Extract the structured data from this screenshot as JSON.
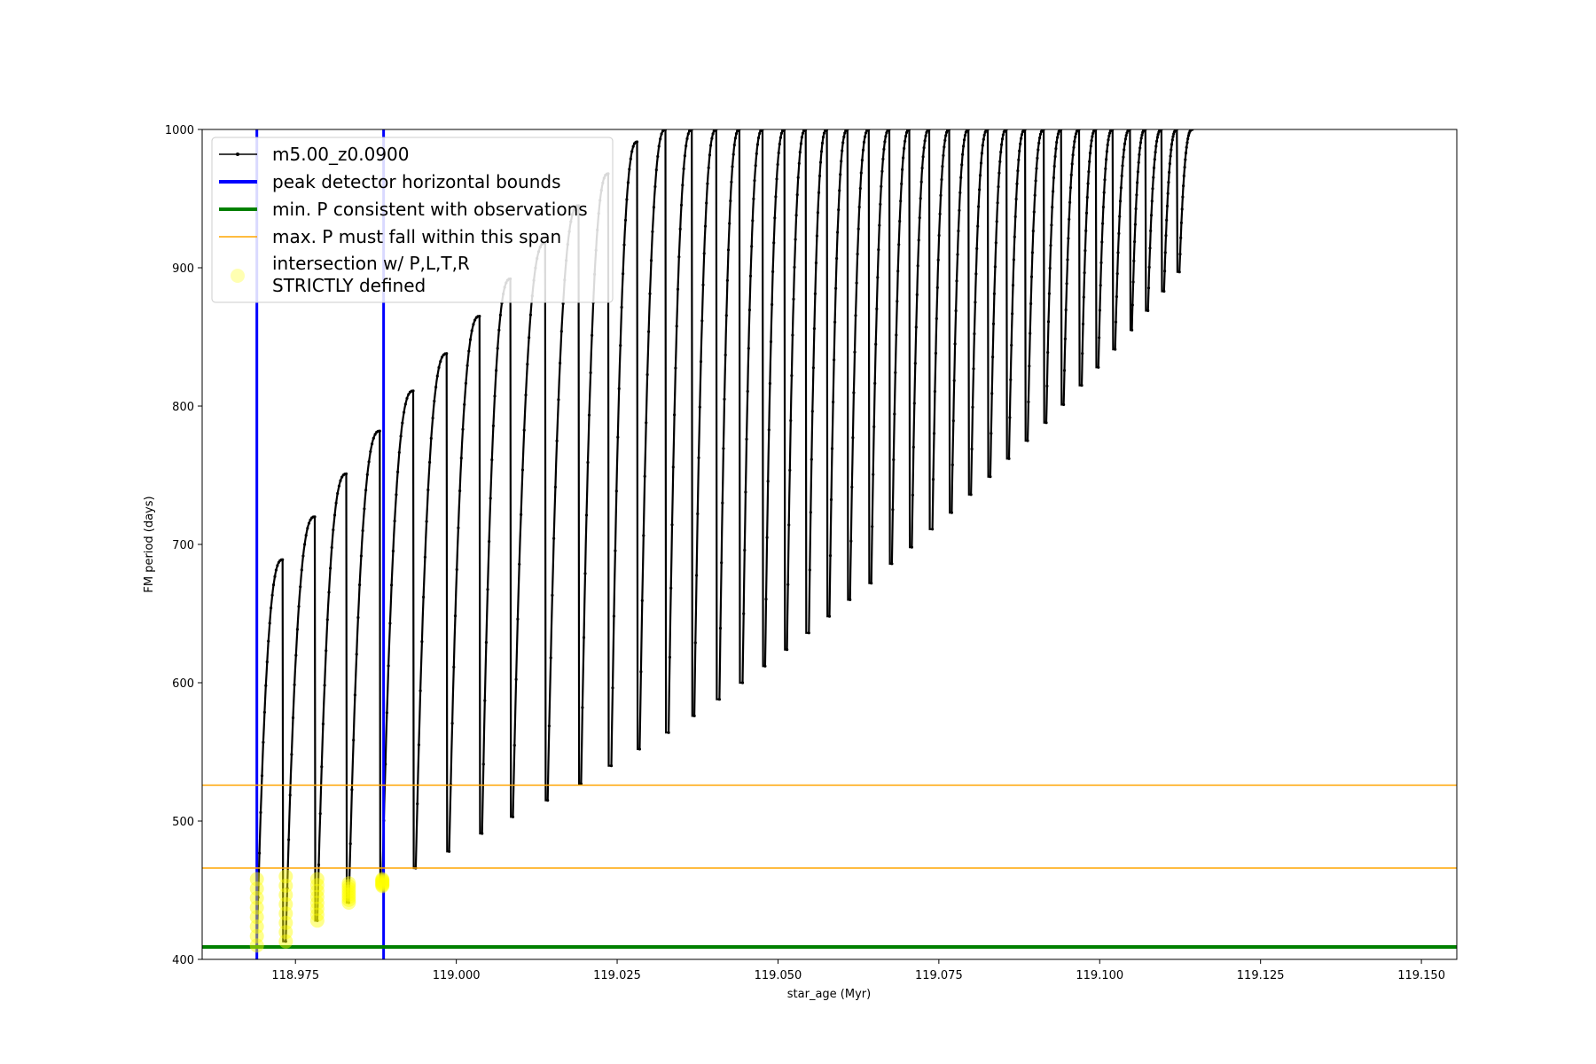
{
  "chart_data": {
    "type": "line",
    "xlabel": "star_age (Myr)",
    "ylabel": "FM period (days)",
    "xlim": [
      118.9605,
      119.1555
    ],
    "ylim": [
      400,
      1000
    ],
    "xticks": [
      118.975,
      119.0,
      119.025,
      119.05,
      119.075,
      119.1,
      119.125,
      119.15
    ],
    "xtick_labels": [
      "118.975",
      "119.000",
      "119.025",
      "119.050",
      "119.075",
      "119.100",
      "119.125",
      "119.150"
    ],
    "yticks": [
      400,
      500,
      600,
      700,
      800,
      900,
      1000
    ],
    "ytick_labels": [
      "400",
      "500",
      "600",
      "700",
      "800",
      "900",
      "1000"
    ],
    "grid": false,
    "legend_position": "upper-left",
    "series": [
      {
        "name": "m5.00_z0.0900",
        "color": "#000000",
        "marker": "dot",
        "description_cycles": "thermal pulse cycles: minimum then rise to peak",
        "cycles": [
          {
            "start": 118.969,
            "min": 410,
            "peak": 689,
            "peak_x": 118.973
          },
          {
            "start": 118.9735,
            "min": 413,
            "peak": 720,
            "peak_x": 118.978
          },
          {
            "start": 118.9784,
            "min": 428,
            "peak": 751,
            "peak_x": 118.9829
          },
          {
            "start": 118.9833,
            "min": 441,
            "peak": 782,
            "peak_x": 118.9881
          },
          {
            "start": 118.9885,
            "min": 456,
            "peak": 811,
            "peak_x": 118.9933
          },
          {
            "start": 118.9937,
            "min": 466,
            "peak": 838,
            "peak_x": 118.9985
          },
          {
            "start": 118.9989,
            "min": 478,
            "peak": 865,
            "peak_x": 119.0036
          },
          {
            "start": 119.004,
            "min": 491,
            "peak": 892,
            "peak_x": 119.0084
          },
          {
            "start": 119.0088,
            "min": 503,
            "peak": 918,
            "peak_x": 119.0138
          },
          {
            "start": 119.0142,
            "min": 515,
            "peak": 945,
            "peak_x": 119.019
          },
          {
            "start": 119.0194,
            "min": 527,
            "peak": 968,
            "peak_x": 119.0236
          },
          {
            "start": 119.0241,
            "min": 540,
            "peak": 991,
            "peak_x": 119.0281
          },
          {
            "start": 119.0285,
            "min": 552,
            "peak": 1000,
            "peak_x": 119.0325
          },
          {
            "start": 119.033,
            "min": 564,
            "peak": 1000,
            "peak_x": 119.0366
          },
          {
            "start": 119.037,
            "min": 576,
            "peak": 1000,
            "peak_x": 119.0404
          },
          {
            "start": 119.0409,
            "min": 588,
            "peak": 1000,
            "peak_x": 119.044
          },
          {
            "start": 119.0445,
            "min": 600,
            "peak": 1000,
            "peak_x": 119.0476
          },
          {
            "start": 119.048,
            "min": 612,
            "peak": 1000,
            "peak_x": 119.051
          },
          {
            "start": 119.0514,
            "min": 624,
            "peak": 1000,
            "peak_x": 119.0543
          },
          {
            "start": 119.0548,
            "min": 636,
            "peak": 1000,
            "peak_x": 119.0576
          },
          {
            "start": 119.058,
            "min": 648,
            "peak": 1000,
            "peak_x": 119.0608
          },
          {
            "start": 119.0612,
            "min": 660,
            "peak": 1000,
            "peak_x": 119.0641
          },
          {
            "start": 119.0645,
            "min": 672,
            "peak": 1000,
            "peak_x": 119.0673
          },
          {
            "start": 119.0677,
            "min": 686,
            "peak": 1000,
            "peak_x": 119.0704
          },
          {
            "start": 119.0708,
            "min": 698,
            "peak": 1000,
            "peak_x": 119.0735
          },
          {
            "start": 119.074,
            "min": 711,
            "peak": 1000,
            "peak_x": 119.0766
          },
          {
            "start": 119.077,
            "min": 723,
            "peak": 1000,
            "peak_x": 119.0796
          },
          {
            "start": 119.08,
            "min": 736,
            "peak": 1000,
            "peak_x": 119.0826
          },
          {
            "start": 119.083,
            "min": 749,
            "peak": 1000,
            "peak_x": 119.0855
          },
          {
            "start": 119.0859,
            "min": 762,
            "peak": 1000,
            "peak_x": 119.0884
          },
          {
            "start": 119.0888,
            "min": 775,
            "peak": 1000,
            "peak_x": 119.0913
          },
          {
            "start": 119.0917,
            "min": 788,
            "peak": 1000,
            "peak_x": 119.094
          },
          {
            "start": 119.0944,
            "min": 801,
            "peak": 1000,
            "peak_x": 119.0968
          },
          {
            "start": 119.0972,
            "min": 815,
            "peak": 1000,
            "peak_x": 119.0994
          },
          {
            "start": 119.0998,
            "min": 828,
            "peak": 1000,
            "peak_x": 119.102
          },
          {
            "start": 119.1024,
            "min": 841,
            "peak": 1000,
            "peak_x": 119.1047
          },
          {
            "start": 119.105,
            "min": 855,
            "peak": 1000,
            "peak_x": 119.1071
          },
          {
            "start": 119.1075,
            "min": 869,
            "peak": 1000,
            "peak_x": 119.1096
          },
          {
            "start": 119.11,
            "min": 883,
            "peak": 1000,
            "peak_x": 119.112
          },
          {
            "start": 119.1124,
            "min": 897,
            "peak": 1000,
            "peak_x": 119.1144
          }
        ]
      }
    ],
    "reference_lines": [
      {
        "name": "peak detector horizontal bounds",
        "orientation": "vertical",
        "color": "#0000ff",
        "values": [
          118.969,
          118.9887
        ]
      },
      {
        "name": "min. P consistent with observations",
        "orientation": "horizontal",
        "color": "#008000",
        "values": [
          409
        ]
      },
      {
        "name": "max. P must fall within this span",
        "orientation": "horizontal",
        "color": "#ffa500",
        "values": [
          466,
          526
        ]
      }
    ],
    "highlight_points": {
      "name_line1": "intersection w/ P,L,T,R",
      "name_line2": "STRICTLY defined",
      "color": "#ffff00",
      "groups": [
        {
          "x": 118.969,
          "y_min": 410,
          "y_max": 458
        },
        {
          "x": 118.9735,
          "y_min": 413,
          "y_max": 460
        },
        {
          "x": 118.9784,
          "y_min": 428,
          "y_max": 458
        },
        {
          "x": 118.9833,
          "y_min": 441,
          "y_max": 455
        },
        {
          "x": 118.9885,
          "y_min": 453,
          "y_max": 458
        }
      ]
    }
  },
  "legend": {
    "entries": [
      {
        "label": "m5.00_z0.0900"
      },
      {
        "label": "peak detector horizontal bounds"
      },
      {
        "label": "min. P consistent with observations"
      },
      {
        "label": "max. P must fall within this span"
      },
      {
        "label_line1": "intersection w/ P,L,T,R",
        "label_line2": "STRICTLY defined"
      }
    ]
  }
}
